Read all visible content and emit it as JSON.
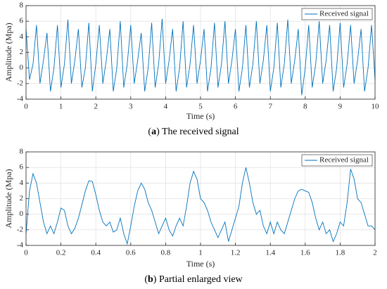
{
  "chart_data": [
    {
      "type": "line",
      "xlabel": "Time (s)",
      "ylabel": "Amplitude (Mpa)",
      "caption": [
        "(",
        "a",
        ") The received signal"
      ],
      "grid": true,
      "legend": "upper right",
      "xlim": [
        0,
        10
      ],
      "ylim": [
        -4,
        8
      ],
      "xticks": [
        0,
        1,
        2,
        3,
        4,
        5,
        6,
        7,
        8,
        9,
        10
      ],
      "yticks": [
        -4,
        -2,
        0,
        2,
        4,
        6,
        8
      ],
      "x": [
        0,
        0.1,
        0.2,
        0.3,
        0.4,
        0.5,
        0.6,
        0.7,
        0.8,
        0.9,
        1,
        1.1,
        1.2,
        1.3,
        1.4,
        1.5,
        1.6,
        1.7,
        1.8,
        1.9,
        2,
        2.1,
        2.2,
        2.3,
        2.4,
        2.5,
        2.6,
        2.7,
        2.8,
        2.9,
        3,
        3.1,
        3.2,
        3.3,
        3.4,
        3.5,
        3.6,
        3.7,
        3.8,
        3.9,
        4,
        4.1,
        4.2,
        4.3,
        4.4,
        4.5,
        4.6,
        4.7,
        4.8,
        4.9,
        5,
        5.1,
        5.2,
        5.3,
        5.4,
        5.5,
        5.6,
        5.7,
        5.8,
        5.9,
        6,
        6.1,
        6.2,
        6.3,
        6.4,
        6.5,
        6.6,
        6.7,
        6.8,
        6.9,
        7,
        7.1,
        7.2,
        7.3,
        7.4,
        7.5,
        7.6,
        7.7,
        7.8,
        7.9,
        8,
        8.1,
        8.2,
        8.3,
        8.4,
        8.5,
        8.6,
        8.7,
        8.8,
        8.9,
        9,
        9.1,
        9.2,
        9.3,
        9.4,
        9.5,
        9.6,
        9.7,
        9.8,
        9.9,
        10
      ],
      "series": [
        {
          "name": "Received signal",
          "color": "#0072bd",
          "values": [
            5,
            -1.5,
            0.5,
            5.5,
            -2,
            1,
            4.5,
            -3,
            0,
            5.5,
            -2.5,
            0.5,
            6.2,
            -2,
            1,
            5,
            -2.5,
            0,
            5.8,
            -3,
            0.5,
            5.5,
            -2,
            1,
            5,
            -3,
            0,
            6,
            -2.5,
            0.5,
            5.5,
            -2,
            1,
            4.5,
            -3,
            0,
            5.8,
            -2.5,
            0.5,
            6.3,
            -2,
            1,
            5,
            -3,
            0,
            6,
            -2.5,
            0.5,
            5.5,
            -2,
            1,
            5,
            -3,
            0,
            5.8,
            -2.5,
            0.5,
            6,
            -2,
            1,
            5,
            -3,
            0,
            5.5,
            -2.5,
            0.5,
            6,
            -2,
            1,
            5.5,
            -3,
            0,
            5.8,
            -2.5,
            0.5,
            6.2,
            -2,
            1,
            5,
            -3.5,
            0,
            5.5,
            -2.5,
            0.5,
            6,
            -2,
            1,
            5.5,
            -3,
            0,
            5.8,
            -2.5,
            0.5,
            5.5,
            -2,
            1,
            5,
            -3,
            0,
            5.5,
            -1.5
          ]
        }
      ]
    },
    {
      "type": "line",
      "xlabel": "Time (s)",
      "ylabel": "Amplitude (Mpa)",
      "caption": [
        "(",
        "b",
        ") Partial enlarged view"
      ],
      "grid": true,
      "legend": "upper right",
      "xlim": [
        0,
        2
      ],
      "ylim": [
        -4,
        8
      ],
      "xticks": [
        0,
        0.2,
        0.4,
        0.6,
        0.8,
        1,
        1.2,
        1.4,
        1.6,
        1.8,
        2
      ],
      "yticks": [
        -4,
        -2,
        0,
        2,
        4,
        6,
        8
      ],
      "x": [
        0,
        0.02,
        0.04,
        0.06,
        0.08,
        0.1,
        0.12,
        0.14,
        0.16,
        0.18,
        0.2,
        0.22,
        0.24,
        0.26,
        0.28,
        0.3,
        0.32,
        0.34,
        0.36,
        0.38,
        0.4,
        0.42,
        0.44,
        0.46,
        0.48,
        0.5,
        0.52,
        0.54,
        0.56,
        0.58,
        0.6,
        0.62,
        0.64,
        0.66,
        0.68,
        0.7,
        0.72,
        0.74,
        0.76,
        0.78,
        0.8,
        0.82,
        0.84,
        0.86,
        0.88,
        0.9,
        0.92,
        0.94,
        0.96,
        0.98,
        1,
        1.02,
        1.04,
        1.06,
        1.08,
        1.1,
        1.12,
        1.14,
        1.16,
        1.18,
        1.2,
        1.22,
        1.24,
        1.26,
        1.28,
        1.3,
        1.32,
        1.34,
        1.36,
        1.38,
        1.4,
        1.42,
        1.44,
        1.46,
        1.48,
        1.5,
        1.52,
        1.54,
        1.56,
        1.58,
        1.6,
        1.62,
        1.64,
        1.66,
        1.68,
        1.7,
        1.72,
        1.74,
        1.76,
        1.78,
        1.8,
        1.82,
        1.84,
        1.86,
        1.88,
        1.9,
        1.92,
        1.94,
        1.96,
        1.98,
        2
      ],
      "series": [
        {
          "name": "Received signal",
          "color": "#0072bd",
          "values": [
            -2.5,
            3,
            5.2,
            4,
            1.5,
            -1,
            -2.5,
            -1.5,
            -2.5,
            -1,
            0.8,
            0.5,
            -1.5,
            -2.5,
            -1.8,
            -0.5,
            1.2,
            3,
            4.3,
            4.2,
            2.5,
            0.5,
            -1,
            -1.5,
            -1,
            -2.3,
            -2,
            -0.5,
            -2.5,
            -3.8,
            -1.5,
            1,
            3,
            4,
            3.2,
            1.5,
            0.5,
            -1,
            -2.5,
            -1.5,
            -0.5,
            -2,
            -2.8,
            -1.5,
            -0.5,
            -1.5,
            1,
            4,
            5.5,
            4.5,
            2,
            1.5,
            0.5,
            -1,
            -2,
            -3,
            -2,
            -1,
            -3.5,
            -2,
            -0.5,
            1,
            4,
            6,
            4,
            1.5,
            0,
            0.5,
            -1.5,
            -2.5,
            -1,
            -2.5,
            -1,
            -2,
            -2.5,
            -1,
            0.5,
            2,
            3,
            3.2,
            3,
            2.8,
            1.5,
            -0.5,
            -2,
            -1,
            -2.5,
            -2,
            -3.5,
            -2.5,
            -1,
            -1.5,
            1.5,
            5.8,
            4.5,
            2,
            1.5,
            0,
            -1.5,
            -1.5,
            -2
          ]
        }
      ]
    }
  ]
}
